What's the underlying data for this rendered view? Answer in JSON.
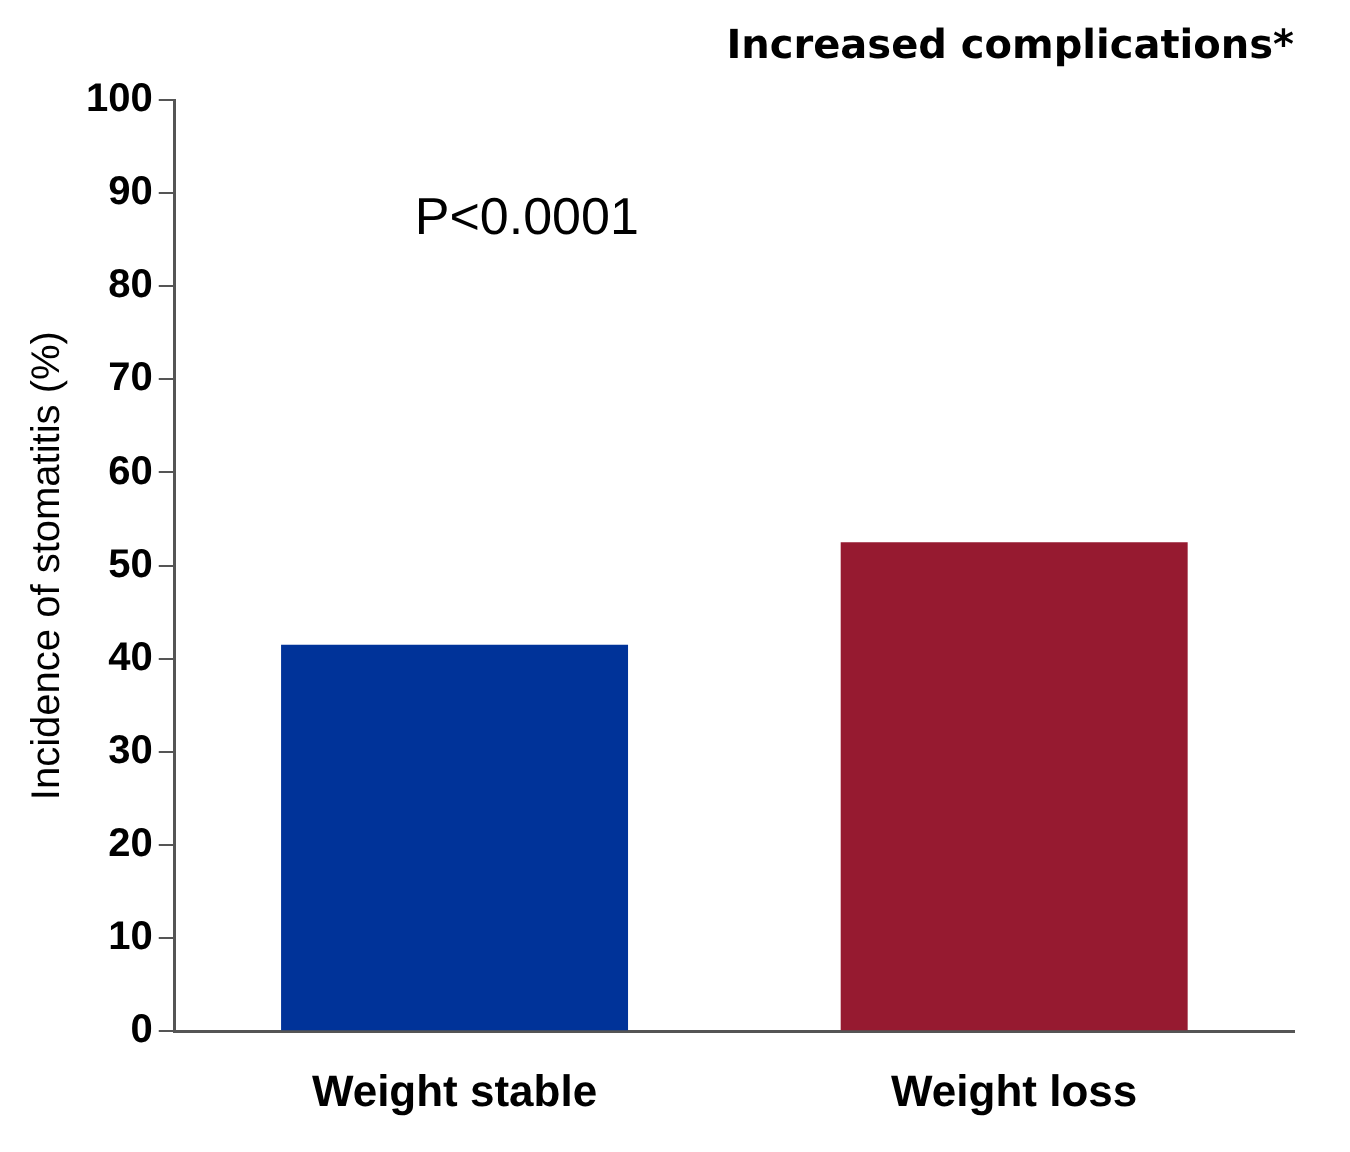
{
  "chart_data": {
    "type": "bar",
    "title": "Increased complications*",
    "ylabel": "Incidence of stomatitis (%)",
    "categories": [
      "Weight stable",
      "Weight loss"
    ],
    "values": [
      41.5,
      52.5
    ],
    "colors": [
      "#003399",
      "#961a30"
    ],
    "ylim": [
      0,
      100
    ],
    "yticks": [
      0,
      10,
      20,
      30,
      40,
      50,
      60,
      70,
      80,
      90,
      100
    ],
    "grid": false,
    "legend": false,
    "annotations": [
      "P<0.0001"
    ]
  }
}
